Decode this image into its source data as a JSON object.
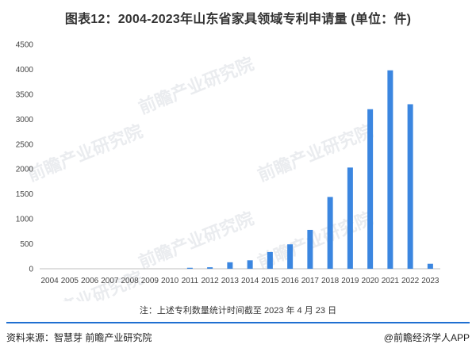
{
  "title": "图表12：2004-2023年山东省家具领域专利申请量 (单位：件)",
  "note": "注：上述专利数量统计时间截至 2023 年 4 月 23 日",
  "source": "资料来源：智慧芽 前瞻产业研究院",
  "brand": "@前瞻经济学人APP",
  "watermark": "前瞻产业研究院",
  "colors": {
    "bar": "#3b86e0",
    "axis": "#bfbfbf",
    "divider": "#1f6fd1"
  },
  "chart_data": {
    "type": "bar",
    "categories": [
      "2004",
      "2005",
      "2006",
      "2007",
      "2008",
      "2009",
      "2010",
      "2011",
      "2012",
      "2013",
      "2014",
      "2015",
      "2016",
      "2017",
      "2018",
      "2019",
      "2020",
      "2021",
      "2022",
      "2023"
    ],
    "values": [
      0,
      0,
      0,
      0,
      0,
      0,
      0,
      20,
      30,
      130,
      170,
      335,
      490,
      780,
      1440,
      2030,
      3200,
      3980,
      3300,
      100
    ],
    "yticks": [
      0,
      500,
      1000,
      1500,
      2000,
      2500,
      3000,
      3500,
      4000,
      4500
    ],
    "ylim": [
      0,
      4500
    ],
    "xlabel": "",
    "ylabel": "",
    "grid": false,
    "legend": "none"
  }
}
